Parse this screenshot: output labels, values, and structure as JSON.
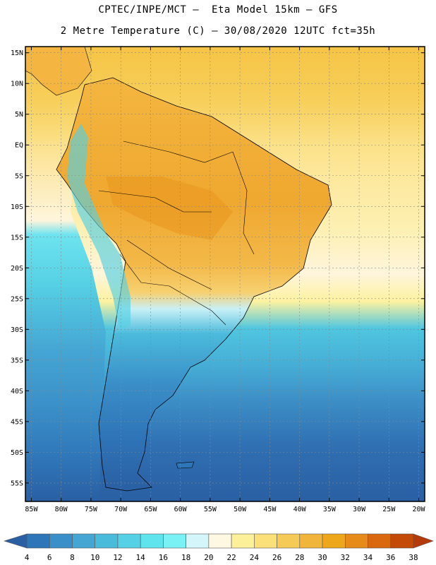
{
  "header": {
    "line1": "CPTEC/INPE/MCT –  Eta Model 15km – GFS",
    "line2": "2 Metre Temperature (C) – 30/08/2020 12UTC fct=35h"
  },
  "map": {
    "lat_labels": [
      "15N",
      "10N",
      "5N",
      "EQ",
      "5S",
      "10S",
      "15S",
      "20S",
      "25S",
      "30S",
      "35S",
      "40S",
      "45S",
      "50S",
      "55S"
    ],
    "lon_labels": [
      "85W",
      "80W",
      "75W",
      "70W",
      "65W",
      "60W",
      "55W",
      "50W",
      "45W",
      "40W",
      "35W",
      "30W",
      "25W",
      "20W"
    ],
    "extent": {
      "lon_min": -86,
      "lon_max": -19,
      "lat_min": -58,
      "lat_max": 16
    }
  },
  "colorbar": {
    "labels": [
      "4",
      "6",
      "8",
      "10",
      "12",
      "14",
      "16",
      "18",
      "20",
      "22",
      "24",
      "26",
      "28",
      "30",
      "32",
      "34",
      "36",
      "38"
    ],
    "colors": [
      "#2a5fa3",
      "#2f76b9",
      "#3a8fc8",
      "#45a6d4",
      "#4bbbdc",
      "#55d0e4",
      "#5fe3ec",
      "#7af2f5",
      "#d4f6fb",
      "#fef8e2",
      "#fdf09a",
      "#fbe07a",
      "#f6ca57",
      "#f1b53c",
      "#eea61a",
      "#e68a1a",
      "#d9680e",
      "#c44a08",
      "#b53a0a"
    ]
  }
}
